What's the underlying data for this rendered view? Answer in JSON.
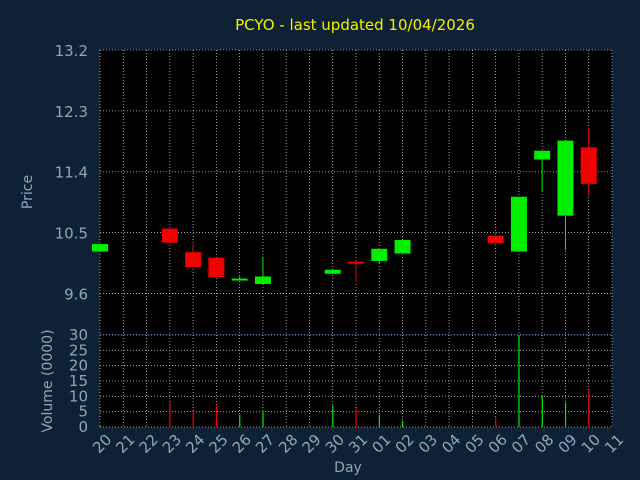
{
  "chart_data": [
    {
      "type": "candlestick",
      "title": "PCYO - last updated 10/04/2026",
      "xlabel": "Day",
      "ylabel": "Price",
      "ylim": [
        9.0,
        13.2
      ],
      "yticks": [
        "9.6",
        "10.5",
        "11.4",
        "12.3",
        "13.2"
      ],
      "grid": true,
      "categories": [
        "20",
        "21",
        "22",
        "23",
        "24",
        "25",
        "26",
        "27",
        "28",
        "29",
        "30",
        "31",
        "01",
        "02",
        "03",
        "04",
        "05",
        "06",
        "07",
        "08",
        "09",
        "10",
        "11"
      ],
      "candles": [
        {
          "day": "20",
          "open": 10.22,
          "close": 10.33,
          "high": 10.33,
          "low": 10.22,
          "dir": "up"
        },
        {
          "day": "23",
          "open": 10.56,
          "close": 10.35,
          "high": 10.56,
          "low": 10.35,
          "dir": "down"
        },
        {
          "day": "24",
          "open": 10.21,
          "close": 9.99,
          "high": 10.33,
          "low": 9.99,
          "dir": "down"
        },
        {
          "day": "25",
          "open": 10.13,
          "close": 9.84,
          "high": 10.13,
          "low": 9.84,
          "dir": "down"
        },
        {
          "day": "26",
          "open": 9.81,
          "close": 9.82,
          "high": 9.85,
          "low": 9.8,
          "dir": "up"
        },
        {
          "day": "27",
          "open": 9.74,
          "close": 9.85,
          "high": 10.13,
          "low": 9.74,
          "dir": "up"
        },
        {
          "day": "30",
          "open": 9.89,
          "close": 9.95,
          "high": 9.95,
          "low": 9.89,
          "dir": "up"
        },
        {
          "day": "31",
          "open": 10.07,
          "close": 10.04,
          "high": 10.07,
          "low": 9.77,
          "dir": "down"
        },
        {
          "day": "01",
          "open": 10.08,
          "close": 10.26,
          "high": 10.26,
          "low": 10.04,
          "dir": "up"
        },
        {
          "day": "02",
          "open": 10.19,
          "close": 10.39,
          "high": 10.39,
          "low": 10.19,
          "dir": "up"
        },
        {
          "day": "06",
          "open": 10.45,
          "close": 10.34,
          "high": 10.51,
          "low": 10.3,
          "dir": "down"
        },
        {
          "day": "07",
          "open": 10.22,
          "close": 11.03,
          "high": 11.03,
          "low": 10.22,
          "dir": "up"
        },
        {
          "day": "08",
          "open": 11.58,
          "close": 11.71,
          "high": 11.71,
          "low": 11.1,
          "dir": "up"
        },
        {
          "day": "09",
          "open": 10.75,
          "close": 11.86,
          "high": 11.86,
          "low": 10.24,
          "dir": "up"
        },
        {
          "day": "10",
          "open": 11.76,
          "close": 11.22,
          "high": 12.05,
          "low": 11.04,
          "dir": "down"
        }
      ]
    },
    {
      "type": "bar",
      "xlabel": "Day",
      "ylabel": "Volume (0000)",
      "ylim": [
        0,
        30
      ],
      "yticks": [
        "0",
        "5",
        "10",
        "15",
        "20",
        "25",
        "30"
      ],
      "grid": true,
      "categories": [
        "20",
        "21",
        "22",
        "23",
        "24",
        "25",
        "26",
        "27",
        "28",
        "29",
        "30",
        "31",
        "01",
        "02",
        "03",
        "04",
        "05",
        "06",
        "07",
        "08",
        "09",
        "10",
        "11"
      ],
      "bars": [
        {
          "day": "20",
          "value": 0.5,
          "dir": "up"
        },
        {
          "day": "23",
          "value": 8,
          "dir": "down"
        },
        {
          "day": "24",
          "value": 5,
          "dir": "down"
        },
        {
          "day": "25",
          "value": 7,
          "dir": "down"
        },
        {
          "day": "26",
          "value": 4,
          "dir": "up"
        },
        {
          "day": "27",
          "value": 5,
          "dir": "up"
        },
        {
          "day": "30",
          "value": 7,
          "dir": "up"
        },
        {
          "day": "31",
          "value": 6,
          "dir": "down"
        },
        {
          "day": "01",
          "value": 4,
          "dir": "up"
        },
        {
          "day": "02",
          "value": 2,
          "dir": "up"
        },
        {
          "day": "06",
          "value": 3,
          "dir": "down"
        },
        {
          "day": "07",
          "value": 30,
          "dir": "up"
        },
        {
          "day": "08",
          "value": 10,
          "dir": "up"
        },
        {
          "day": "09",
          "value": 8,
          "dir": "up"
        },
        {
          "day": "10",
          "value": 12,
          "dir": "down"
        }
      ]
    }
  ],
  "colors": {
    "background": "#0f2235",
    "plot": "#000000",
    "text": "#8aa7c5",
    "title": "#f2f200",
    "up": "#00f000",
    "down": "#f00000",
    "grid": "#c0c0c0"
  }
}
